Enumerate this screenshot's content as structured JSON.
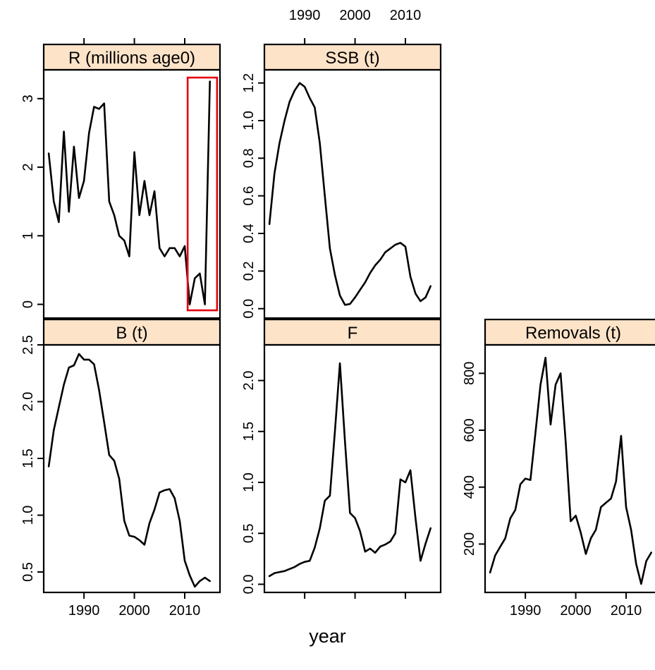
{
  "xlabel": "year",
  "highlight_color": "#e3000f",
  "strip_color": "#fde3c8",
  "chart_data": [
    {
      "type": "line",
      "title": "R (millions age0)",
      "x": [
        1983,
        1984,
        1985,
        1986,
        1987,
        1988,
        1989,
        1990,
        1991,
        1992,
        1993,
        1994,
        1995,
        1996,
        1997,
        1998,
        1999,
        2000,
        2001,
        2002,
        2003,
        2004,
        2005,
        2006,
        2007,
        2008,
        2009,
        2010,
        2011,
        2012,
        2013,
        2014,
        2015
      ],
      "y": [
        2.2,
        1.5,
        1.2,
        2.52,
        1.35,
        2.3,
        1.55,
        1.8,
        2.5,
        2.88,
        2.85,
        2.93,
        1.5,
        1.3,
        1.0,
        0.93,
        0.7,
        2.22,
        1.3,
        1.8,
        1.3,
        1.65,
        0.82,
        0.7,
        0.82,
        0.82,
        0.7,
        0.85,
        0.0,
        0.38,
        0.45,
        0.0,
        3.25
      ],
      "xlim": [
        1982,
        2017
      ],
      "ylim": [
        -0.2,
        3.42
      ],
      "yticks": [
        0,
        1,
        2,
        3
      ],
      "xticks": [
        1990,
        2000,
        2010
      ],
      "x_tick_labels_shown": false,
      "annotation": {
        "type": "highlight-box",
        "x_range": [
          2011,
          2016
        ],
        "color": "#e3000f"
      }
    },
    {
      "type": "line",
      "title": "SSB (t)",
      "x": [
        1983,
        1984,
        1985,
        1986,
        1987,
        1988,
        1989,
        1990,
        1991,
        1992,
        1993,
        1994,
        1995,
        1996,
        1997,
        1998,
        1999,
        2000,
        2001,
        2002,
        2003,
        2004,
        2005,
        2006,
        2007,
        2008,
        2009,
        2010,
        2011,
        2012,
        2013,
        2014,
        2015
      ],
      "y": [
        0.45,
        0.72,
        0.88,
        1.0,
        1.1,
        1.16,
        1.2,
        1.18,
        1.12,
        1.07,
        0.88,
        0.6,
        0.32,
        0.18,
        0.07,
        0.02,
        0.025,
        0.06,
        0.1,
        0.14,
        0.19,
        0.23,
        0.26,
        0.3,
        0.32,
        0.34,
        0.35,
        0.33,
        0.17,
        0.08,
        0.04,
        0.06,
        0.12
      ],
      "xlim": [
        1982,
        2017
      ],
      "ylim": [
        -0.05,
        1.27
      ],
      "yticks": [
        0.0,
        0.2,
        0.4,
        0.6,
        0.8,
        1.0,
        1.2
      ],
      "ytick_labels": [
        "0.0",
        "0.2",
        "0.4",
        "0.6",
        "0.8",
        "1.0",
        "1.2"
      ],
      "xticks": [
        1990,
        2000,
        2010
      ],
      "x_tick_labels": [
        "1990",
        "2000",
        "2010"
      ],
      "x_tick_labels_position": "top"
    },
    {
      "type": "line",
      "title": "B (t)",
      "x": [
        1983,
        1984,
        1985,
        1986,
        1987,
        1988,
        1989,
        1990,
        1991,
        1992,
        1993,
        1994,
        1995,
        1996,
        1997,
        1998,
        1999,
        2000,
        2001,
        2002,
        2003,
        2004,
        2005,
        2006,
        2007,
        2008,
        2009,
        2010,
        2011,
        2012,
        2013,
        2014,
        2015
      ],
      "y": [
        1.43,
        1.75,
        1.95,
        2.15,
        2.3,
        2.32,
        2.42,
        2.37,
        2.37,
        2.33,
        2.1,
        1.82,
        1.53,
        1.48,
        1.32,
        0.95,
        0.82,
        0.81,
        0.78,
        0.74,
        0.93,
        1.05,
        1.2,
        1.22,
        1.23,
        1.15,
        0.95,
        0.6,
        0.47,
        0.37,
        0.42,
        0.45,
        0.42
      ],
      "xlim": [
        1982,
        2017
      ],
      "ylim": [
        0.32,
        2.5
      ],
      "yticks": [
        0.5,
        1.0,
        1.5,
        2.0,
        2.5
      ],
      "ytick_labels": [
        "0.5",
        "1.0",
        "1.5",
        "2.0",
        "2.5"
      ],
      "xticks": [
        1990,
        2000,
        2010
      ],
      "x_tick_labels": [
        "1990",
        "2000",
        "2010"
      ],
      "x_tick_labels_position": "bottom"
    },
    {
      "type": "line",
      "title": "F",
      "x": [
        1983,
        1984,
        1985,
        1986,
        1987,
        1988,
        1989,
        1990,
        1991,
        1992,
        1993,
        1994,
        1995,
        1996,
        1997,
        1998,
        1999,
        2000,
        2001,
        2002,
        2003,
        2004,
        2005,
        2006,
        2007,
        2008,
        2009,
        2010,
        2011,
        2012,
        2013,
        2014,
        2015
      ],
      "y": [
        0.08,
        0.11,
        0.12,
        0.13,
        0.15,
        0.17,
        0.2,
        0.22,
        0.23,
        0.36,
        0.55,
        0.82,
        0.87,
        1.5,
        2.17,
        1.4,
        0.7,
        0.65,
        0.52,
        0.32,
        0.35,
        0.31,
        0.37,
        0.39,
        0.42,
        0.5,
        1.03,
        1.0,
        1.12,
        0.65,
        0.23,
        0.4,
        0.55
      ],
      "xlim": [
        1982,
        2017
      ],
      "ylim": [
        -0.08,
        2.35
      ],
      "yticks": [
        0.0,
        0.5,
        1.0,
        1.5,
        2.0
      ],
      "ytick_labels": [
        "0.0",
        "0.5",
        "1.0",
        "1.5",
        "2.0"
      ],
      "xticks": [
        1990,
        2000,
        2010
      ],
      "x_tick_labels_shown": false
    },
    {
      "type": "line",
      "title": "Removals (t)",
      "x": [
        1983,
        1984,
        1985,
        1986,
        1987,
        1988,
        1989,
        1990,
        1991,
        1992,
        1993,
        1994,
        1995,
        1996,
        1997,
        1998,
        1999,
        2000,
        2001,
        2002,
        2003,
        2004,
        2005,
        2006,
        2007,
        2008,
        2009,
        2010,
        2011,
        2012,
        2013,
        2014,
        2015
      ],
      "y": [
        100,
        160,
        190,
        220,
        290,
        320,
        410,
        430,
        425,
        590,
        760,
        855,
        620,
        760,
        800,
        560,
        280,
        300,
        240,
        165,
        220,
        250,
        330,
        345,
        360,
        420,
        580,
        330,
        250,
        130,
        60,
        140,
        170
      ],
      "xlim": [
        1982,
        2017
      ],
      "ylim": [
        30,
        900
      ],
      "yticks": [
        200,
        400,
        600,
        800
      ],
      "ytick_labels": [
        "200",
        "400",
        "600",
        "800"
      ],
      "xticks": [
        1990,
        2000,
        2010
      ],
      "x_tick_labels": [
        "1990",
        "2000",
        "2010"
      ],
      "x_tick_labels_position": "bottom"
    }
  ]
}
